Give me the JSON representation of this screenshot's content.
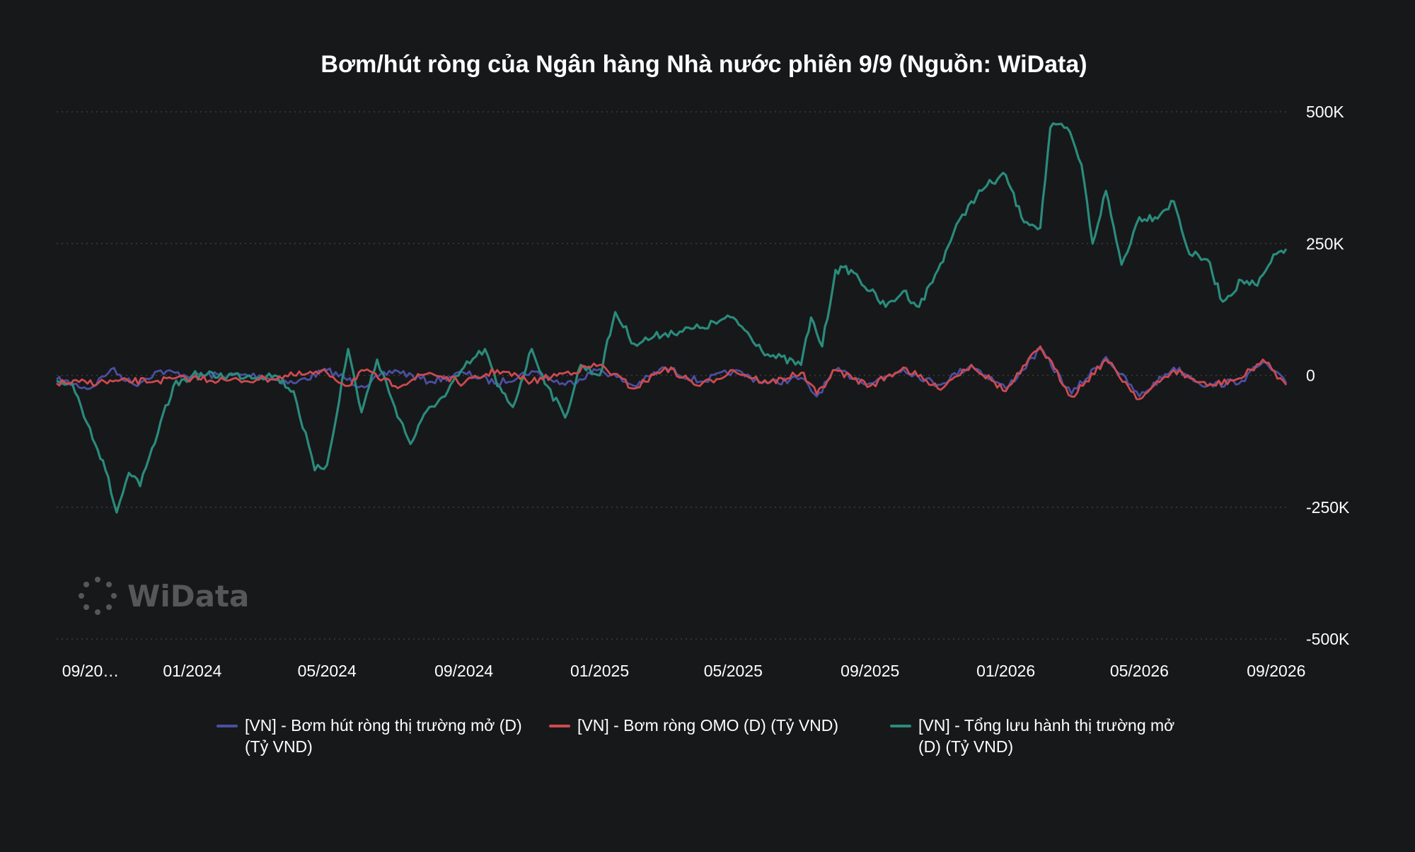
{
  "chart_data": {
    "type": "line",
    "title": "Bơm/hút ròng của Ngân hàng Nhà nước phiên 9/9 (Nguồn: WiData)",
    "y_axis": {
      "position": "right",
      "ylim": [
        -500000,
        500000
      ],
      "ticks": [
        500000,
        250000,
        0,
        -250000,
        -500000
      ],
      "tick_labels": [
        "500K",
        "250K",
        "0",
        "-250K",
        "-500K"
      ]
    },
    "x_axis": {
      "range": [
        "2023-09-01",
        "2026-09-10"
      ],
      "tick_labels": [
        "09/20…",
        "01/2024",
        "05/2024",
        "09/2024",
        "01/2025",
        "05/2025",
        "09/2025",
        "01/2026",
        "05/2026",
        "09/2026"
      ],
      "tick_dates": [
        "2023-09-01",
        "2024-01-01",
        "2024-05-01",
        "2024-09-01",
        "2025-01-01",
        "2025-05-01",
        "2025-09-01",
        "2026-01-01",
        "2026-05-01",
        "2026-09-01"
      ]
    },
    "grid": "horizontal dotted",
    "legend": "bottom",
    "series": [
      {
        "name": "[VN] - Bơm hút ròng thị trường mở (D) (Tỷ VND)",
        "color": "#4a4fa0",
        "points": [
          [
            "2023-09-01",
            -8000
          ],
          [
            "2023-10-01",
            -25000
          ],
          [
            "2023-10-20",
            12000
          ],
          [
            "2023-11-10",
            -18000
          ],
          [
            "2023-12-01",
            8000
          ],
          [
            "2024-01-01",
            0
          ],
          [
            "2024-03-01",
            0
          ],
          [
            "2024-04-01",
            -15000
          ],
          [
            "2024-05-01",
            10000
          ],
          [
            "2024-06-01",
            -20000
          ],
          [
            "2024-07-01",
            10000
          ],
          [
            "2024-08-01",
            -12000
          ],
          [
            "2024-09-01",
            5000
          ],
          [
            "2024-10-01",
            -15000
          ],
          [
            "2024-11-01",
            8000
          ],
          [
            "2024-12-01",
            -18000
          ],
          [
            "2025-01-01",
            12000
          ],
          [
            "2025-02-01",
            -20000
          ],
          [
            "2025-03-01",
            15000
          ],
          [
            "2025-04-01",
            -12000
          ],
          [
            "2025-05-01",
            8000
          ],
          [
            "2025-06-01",
            -15000
          ],
          [
            "2025-07-01",
            -5000
          ],
          [
            "2025-07-15",
            -40000
          ],
          [
            "2025-08-01",
            10000
          ],
          [
            "2025-09-01",
            -15000
          ],
          [
            "2025-10-01",
            12000
          ],
          [
            "2025-11-01",
            -18000
          ],
          [
            "2025-12-01",
            20000
          ],
          [
            "2026-01-01",
            -25000
          ],
          [
            "2026-02-01",
            50000
          ],
          [
            "2026-03-01",
            -35000
          ],
          [
            "2026-04-01",
            35000
          ],
          [
            "2026-05-01",
            -40000
          ],
          [
            "2026-06-01",
            15000
          ],
          [
            "2026-07-01",
            -20000
          ],
          [
            "2026-08-01",
            -10000
          ],
          [
            "2026-08-20",
            25000
          ],
          [
            "2026-09-10",
            -15000
          ]
        ]
      },
      {
        "name": "[VN] - Bơm ròng OMO (D) (Tỷ VND)",
        "color": "#cd4a4f",
        "points": [
          [
            "2023-09-01",
            -15000
          ],
          [
            "2023-12-01",
            -10000
          ],
          [
            "2024-01-01",
            -5000
          ],
          [
            "2024-02-01",
            -10000
          ],
          [
            "2024-03-01",
            -8000
          ],
          [
            "2024-04-01",
            0
          ],
          [
            "2024-05-01",
            5000
          ],
          [
            "2024-05-20",
            -20000
          ],
          [
            "2024-06-01",
            10000
          ],
          [
            "2024-07-01",
            -20000
          ],
          [
            "2024-08-01",
            5000
          ],
          [
            "2024-09-01",
            -15000
          ],
          [
            "2024-10-01",
            10000
          ],
          [
            "2024-11-01",
            -12000
          ],
          [
            "2024-12-01",
            5000
          ],
          [
            "2025-01-01",
            20000
          ],
          [
            "2025-02-01",
            -25000
          ],
          [
            "2025-03-01",
            15000
          ],
          [
            "2025-04-01",
            -20000
          ],
          [
            "2025-05-01",
            10000
          ],
          [
            "2025-06-01",
            -15000
          ],
          [
            "2025-07-01",
            5000
          ],
          [
            "2025-07-15",
            -35000
          ],
          [
            "2025-08-01",
            10000
          ],
          [
            "2025-09-01",
            -20000
          ],
          [
            "2025-10-01",
            15000
          ],
          [
            "2025-11-01",
            -25000
          ],
          [
            "2025-12-01",
            20000
          ],
          [
            "2026-01-01",
            -30000
          ],
          [
            "2026-02-01",
            55000
          ],
          [
            "2026-03-01",
            -40000
          ],
          [
            "2026-04-01",
            30000
          ],
          [
            "2026-05-01",
            -45000
          ],
          [
            "2026-06-01",
            10000
          ],
          [
            "2026-07-01",
            -20000
          ],
          [
            "2026-08-01",
            -5000
          ],
          [
            "2026-08-20",
            30000
          ],
          [
            "2026-09-10",
            -18000
          ]
        ]
      },
      {
        "name": "[VN] - Tổng lưu hành thị trường mở (D) (Tỷ VND)",
        "color": "#2a8b7c",
        "points": [
          [
            "2023-09-01",
            -10000
          ],
          [
            "2023-09-15",
            -15000
          ],
          [
            "2023-10-01",
            -100000
          ],
          [
            "2023-10-15",
            -180000
          ],
          [
            "2023-10-25",
            -260000
          ],
          [
            "2023-11-05",
            -185000
          ],
          [
            "2023-11-15",
            -210000
          ],
          [
            "2023-12-01",
            -110000
          ],
          [
            "2023-12-15",
            -20000
          ],
          [
            "2024-01-01",
            0
          ],
          [
            "2024-03-15",
            0
          ],
          [
            "2024-04-01",
            -30000
          ],
          [
            "2024-04-20",
            -180000
          ],
          [
            "2024-05-01",
            -170000
          ],
          [
            "2024-05-20",
            50000
          ],
          [
            "2024-06-01",
            -70000
          ],
          [
            "2024-06-15",
            30000
          ],
          [
            "2024-07-01",
            -60000
          ],
          [
            "2024-07-15",
            -130000
          ],
          [
            "2024-08-01",
            -60000
          ],
          [
            "2024-08-15",
            -40000
          ],
          [
            "2024-09-01",
            15000
          ],
          [
            "2024-09-20",
            50000
          ],
          [
            "2024-10-01",
            -20000
          ],
          [
            "2024-10-15",
            -60000
          ],
          [
            "2024-11-01",
            50000
          ],
          [
            "2024-11-15",
            -20000
          ],
          [
            "2024-12-01",
            -80000
          ],
          [
            "2024-12-15",
            20000
          ],
          [
            "2025-01-01",
            0
          ],
          [
            "2025-01-15",
            120000
          ],
          [
            "2025-02-01",
            60000
          ],
          [
            "2025-03-01",
            80000
          ],
          [
            "2025-04-01",
            90000
          ],
          [
            "2025-05-01",
            110000
          ],
          [
            "2025-06-01",
            40000
          ],
          [
            "2025-07-01",
            20000
          ],
          [
            "2025-07-10",
            110000
          ],
          [
            "2025-07-20",
            55000
          ],
          [
            "2025-08-01",
            200000
          ],
          [
            "2025-08-15",
            200000
          ],
          [
            "2025-09-01",
            160000
          ],
          [
            "2025-09-15",
            130000
          ],
          [
            "2025-10-01",
            160000
          ],
          [
            "2025-10-15",
            130000
          ],
          [
            "2025-11-01",
            200000
          ],
          [
            "2025-11-15",
            270000
          ],
          [
            "2025-12-01",
            330000
          ],
          [
            "2025-12-15",
            360000
          ],
          [
            "2026-01-01",
            380000
          ],
          [
            "2026-01-15",
            300000
          ],
          [
            "2026-02-01",
            280000
          ],
          [
            "2026-02-10",
            470000
          ],
          [
            "2026-02-25",
            470000
          ],
          [
            "2026-03-10",
            400000
          ],
          [
            "2026-03-20",
            250000
          ],
          [
            "2026-04-01",
            350000
          ],
          [
            "2026-04-15",
            210000
          ],
          [
            "2026-05-01",
            300000
          ],
          [
            "2026-05-15",
            300000
          ],
          [
            "2026-06-01",
            330000
          ],
          [
            "2026-06-15",
            230000
          ],
          [
            "2026-07-01",
            220000
          ],
          [
            "2026-07-15",
            140000
          ],
          [
            "2026-08-01",
            180000
          ],
          [
            "2026-08-15",
            170000
          ],
          [
            "2026-09-01",
            230000
          ],
          [
            "2026-09-10",
            240000
          ]
        ]
      }
    ]
  },
  "watermark": {
    "text": "WiData",
    "icon": "widata-logo-icon"
  }
}
